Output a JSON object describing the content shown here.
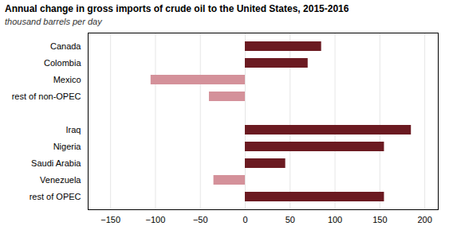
{
  "chart_data": {
    "type": "bar",
    "orientation": "horizontal",
    "title": "Annual change in gross imports of crude oil to the United States, 2015-2016",
    "subtitle": "thousand barrels per day",
    "categories": [
      "Canada",
      "Colombia",
      "Mexico",
      "rest of non-OPEC",
      null,
      "Iraq",
      "Nigeria",
      "Saudi Arabia",
      "Venezuela",
      "rest of OPEC"
    ],
    "values": [
      85,
      70,
      -105,
      -40,
      0,
      185,
      155,
      45,
      -35,
      155
    ],
    "colors": [
      "#6b1a21",
      "#6b1a21",
      "#d4919a",
      "#d4919a",
      "#ffffff",
      "#6b1a21",
      "#6b1a21",
      "#6b1a21",
      "#d4919a",
      "#6b1a21"
    ],
    "xlim": [
      -175,
      215
    ],
    "xticks": [
      -150,
      -100,
      -50,
      0,
      50,
      100,
      150,
      200
    ],
    "grid": true
  }
}
